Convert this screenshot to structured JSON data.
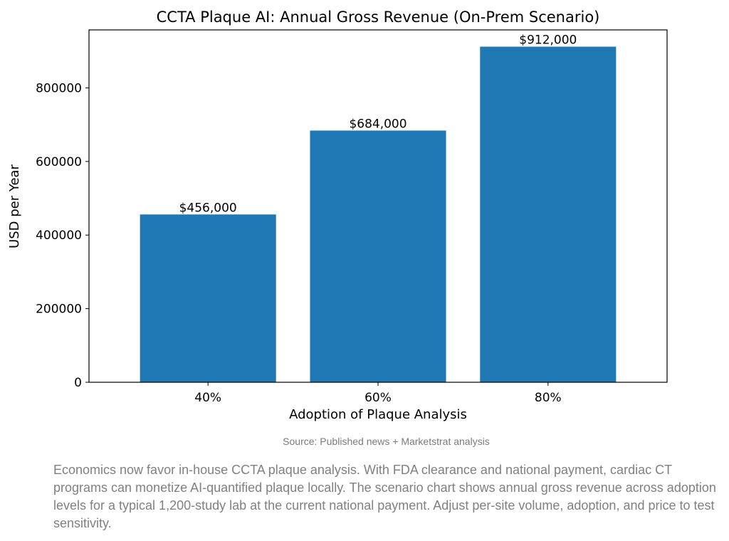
{
  "chart_data": {
    "type": "bar",
    "title": "CCTA Plaque AI: Annual Gross Revenue (On-Prem Scenario)",
    "xlabel": "Adoption of Plaque Analysis",
    "ylabel": "USD per Year",
    "categories": [
      "40%",
      "60%",
      "80%"
    ],
    "values": [
      456000,
      684000,
      912000
    ],
    "data_labels": [
      "$456,000",
      "$684,000",
      "$912,000"
    ],
    "yticks": [
      0,
      200000,
      400000,
      600000,
      800000
    ],
    "ytick_labels": [
      "0",
      "200000",
      "400000",
      "600000",
      "800000"
    ],
    "ylim": [
      0,
      957600
    ],
    "bar_color": "#1f77b4",
    "grid": false
  },
  "source": "Source: Published news + Marketstrat analysis",
  "caption": "Economics now favor in-house CCTA plaque analysis. With FDA clearance and national payment, cardiac CT programs can monetize AI-quantified plaque locally. The scenario chart shows annual gross revenue across adoption levels for a typical 1,200-study lab at the current national payment. Adjust per-site volume, adoption, and price to test sensitivity."
}
